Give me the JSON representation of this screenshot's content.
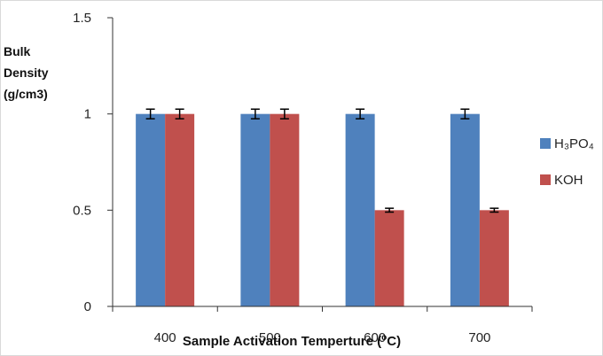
{
  "chart_data": {
    "type": "bar",
    "title": "",
    "ylabel_lines": [
      "Bulk",
      "Density",
      "(g/cm3)"
    ],
    "xlabel": "Sample Activation Temperture (",
    "xlabel_sup": "o",
    "xlabel_end": "C)",
    "categories": [
      "400",
      "500",
      "600",
      "700"
    ],
    "yticks": [
      "0",
      "0.5",
      "1",
      "1.5"
    ],
    "ylim": [
      0,
      1.5
    ],
    "grid": false,
    "legend_position": "right",
    "series": [
      {
        "name": "H₃PO₄",
        "color": "#4f81bd",
        "values": [
          1.0,
          1.0,
          1.0,
          1.0
        ],
        "errors": [
          0.025,
          0.025,
          0.025,
          0.025
        ]
      },
      {
        "name": "KOH",
        "color": "#c0504d",
        "values": [
          1.0,
          1.0,
          0.5,
          0.5
        ],
        "errors": [
          0.025,
          0.025,
          0.01,
          0.01
        ]
      }
    ]
  }
}
